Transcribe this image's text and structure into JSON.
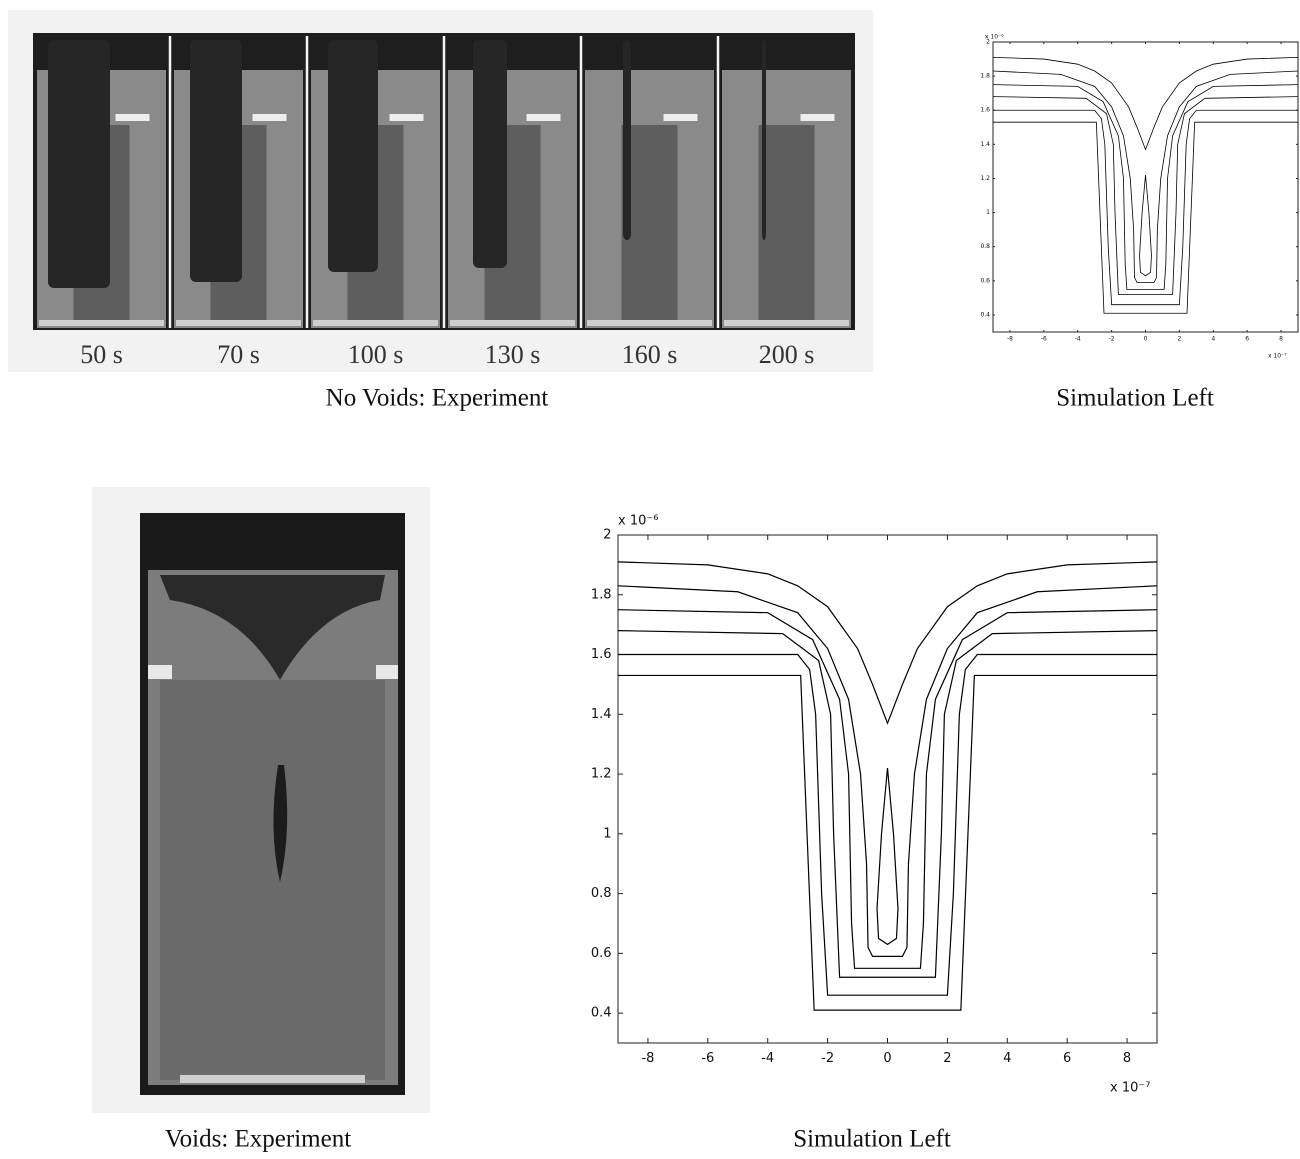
{
  "figure": {
    "time_labels": [
      "50 s",
      "70 s",
      "100 s",
      "130 s",
      "160 s",
      "200 s"
    ],
    "captions": [
      "No Voids: Experiment",
      "Simulation Left",
      "Voids: Experiment",
      "Simulation Left"
    ]
  },
  "chart_data": [
    {
      "type": "line",
      "color": "#000000",
      "y_exponent": "x 10⁻⁶",
      "x_exponent": "x 10⁻⁷",
      "xlim": [
        -9,
        9
      ],
      "ylim": [
        0.3,
        2
      ],
      "xticks": [
        -8,
        -6,
        -4,
        -2,
        0,
        2,
        4,
        6,
        8
      ],
      "yticks": [
        0.4,
        0.6,
        0.8,
        1,
        1.2,
        1.4,
        1.6,
        1.8,
        2
      ],
      "series": [
        {
          "x": [
            -9,
            -6,
            -4,
            -3,
            -2,
            -1,
            -0.5,
            0,
            0.5,
            1,
            2,
            3,
            4,
            6,
            9
          ],
          "values": [
            1.91,
            1.9,
            1.87,
            1.83,
            1.76,
            1.62,
            1.5,
            1.37,
            1.5,
            1.62,
            1.76,
            1.83,
            1.87,
            1.9,
            1.91
          ]
        },
        {
          "x": [
            -9,
            -5,
            -3,
            -2,
            -1.3,
            -0.9,
            -0.7,
            -0.65,
            -0.5,
            0.5,
            0.65,
            0.7,
            0.9,
            1.3,
            2,
            3,
            5,
            9
          ],
          "values": [
            1.83,
            1.81,
            1.74,
            1.62,
            1.45,
            1.2,
            0.9,
            0.62,
            0.59,
            0.59,
            0.62,
            0.9,
            1.2,
            1.45,
            1.62,
            1.74,
            1.81,
            1.83
          ]
        },
        {
          "x": [
            0,
            -0.2,
            -0.35,
            -0.3,
            0,
            0.3,
            0.35,
            0.2,
            0
          ],
          "values": [
            1.22,
            1.0,
            0.75,
            0.65,
            0.63,
            0.65,
            0.75,
            1.0,
            1.22
          ]
        },
        {
          "x": [
            -9,
            -4,
            -2.5,
            -1.6,
            -1.3,
            -1.2,
            -1.1,
            1.1,
            1.2,
            1.3,
            1.6,
            2.5,
            4,
            9
          ],
          "values": [
            1.75,
            1.74,
            1.65,
            1.45,
            1.2,
            0.7,
            0.55,
            0.55,
            0.7,
            1.2,
            1.45,
            1.65,
            1.74,
            1.75
          ]
        },
        {
          "x": [
            -9,
            -3.5,
            -2.3,
            -1.9,
            -1.8,
            -1.6,
            1.6,
            1.8,
            1.9,
            2.3,
            3.5,
            9
          ],
          "values": [
            1.68,
            1.67,
            1.58,
            1.4,
            1.0,
            0.52,
            0.52,
            1.0,
            1.4,
            1.58,
            1.67,
            1.68
          ]
        },
        {
          "x": [
            -9,
            -3,
            -2.6,
            -2.4,
            -2.2,
            -2.0,
            2.0,
            2.2,
            2.4,
            2.6,
            3,
            9
          ],
          "values": [
            1.6,
            1.6,
            1.55,
            1.4,
            0.8,
            0.46,
            0.46,
            0.8,
            1.4,
            1.55,
            1.6,
            1.6
          ]
        },
        {
          "x": [
            -9,
            -2.9,
            -2.45,
            2.45,
            2.9,
            9
          ],
          "values": [
            1.53,
            1.53,
            0.41,
            0.41,
            1.53,
            1.53
          ]
        }
      ]
    },
    {
      "type": "line",
      "color": "#000000",
      "y_exponent": "x 10⁻⁶",
      "x_exponent": "x 10⁻⁷",
      "xlim": [
        -9,
        9
      ],
      "ylim": [
        0.3,
        2
      ],
      "xticks": [
        -8,
        -6,
        -4,
        -2,
        0,
        2,
        4,
        6,
        8
      ],
      "yticks": [
        0.4,
        0.6,
        0.8,
        1,
        1.2,
        1.4,
        1.6,
        1.8,
        2
      ],
      "series": [
        {
          "x": [
            -9,
            -6,
            -4,
            -3,
            -2,
            -1,
            -0.5,
            0,
            0.5,
            1,
            2,
            3,
            4,
            6,
            9
          ],
          "values": [
            1.91,
            1.9,
            1.87,
            1.83,
            1.76,
            1.62,
            1.5,
            1.37,
            1.5,
            1.62,
            1.76,
            1.83,
            1.87,
            1.9,
            1.91
          ]
        },
        {
          "x": [
            -9,
            -5,
            -3,
            -2,
            -1.3,
            -0.9,
            -0.7,
            -0.65,
            -0.5,
            0.5,
            0.65,
            0.7,
            0.9,
            1.3,
            2,
            3,
            5,
            9
          ],
          "values": [
            1.83,
            1.81,
            1.74,
            1.62,
            1.45,
            1.2,
            0.9,
            0.62,
            0.59,
            0.59,
            0.62,
            0.9,
            1.2,
            1.45,
            1.62,
            1.74,
            1.81,
            1.83
          ]
        },
        {
          "x": [
            0,
            -0.2,
            -0.35,
            -0.3,
            0,
            0.3,
            0.35,
            0.2,
            0
          ],
          "values": [
            1.22,
            1.0,
            0.75,
            0.65,
            0.63,
            0.65,
            0.75,
            1.0,
            1.22
          ]
        },
        {
          "x": [
            -9,
            -4,
            -2.5,
            -1.6,
            -1.3,
            -1.2,
            -1.1,
            1.1,
            1.2,
            1.3,
            1.6,
            2.5,
            4,
            9
          ],
          "values": [
            1.75,
            1.74,
            1.65,
            1.45,
            1.2,
            0.7,
            0.55,
            0.55,
            0.7,
            1.2,
            1.45,
            1.65,
            1.74,
            1.75
          ]
        },
        {
          "x": [
            -9,
            -3.5,
            -2.3,
            -1.9,
            -1.8,
            -1.6,
            1.6,
            1.8,
            1.9,
            2.3,
            3.5,
            9
          ],
          "values": [
            1.68,
            1.67,
            1.58,
            1.4,
            1.0,
            0.52,
            0.52,
            1.0,
            1.4,
            1.58,
            1.67,
            1.68
          ]
        },
        {
          "x": [
            -9,
            -3,
            -2.6,
            -2.4,
            -2.2,
            -2.0,
            2.0,
            2.2,
            2.4,
            2.6,
            3,
            9
          ],
          "values": [
            1.6,
            1.6,
            1.55,
            1.4,
            0.8,
            0.46,
            0.46,
            0.8,
            1.4,
            1.55,
            1.6,
            1.6
          ]
        },
        {
          "x": [
            -9,
            -2.9,
            -2.45,
            2.45,
            2.9,
            9
          ],
          "values": [
            1.53,
            1.53,
            0.41,
            0.41,
            1.53,
            1.53
          ]
        }
      ]
    }
  ]
}
